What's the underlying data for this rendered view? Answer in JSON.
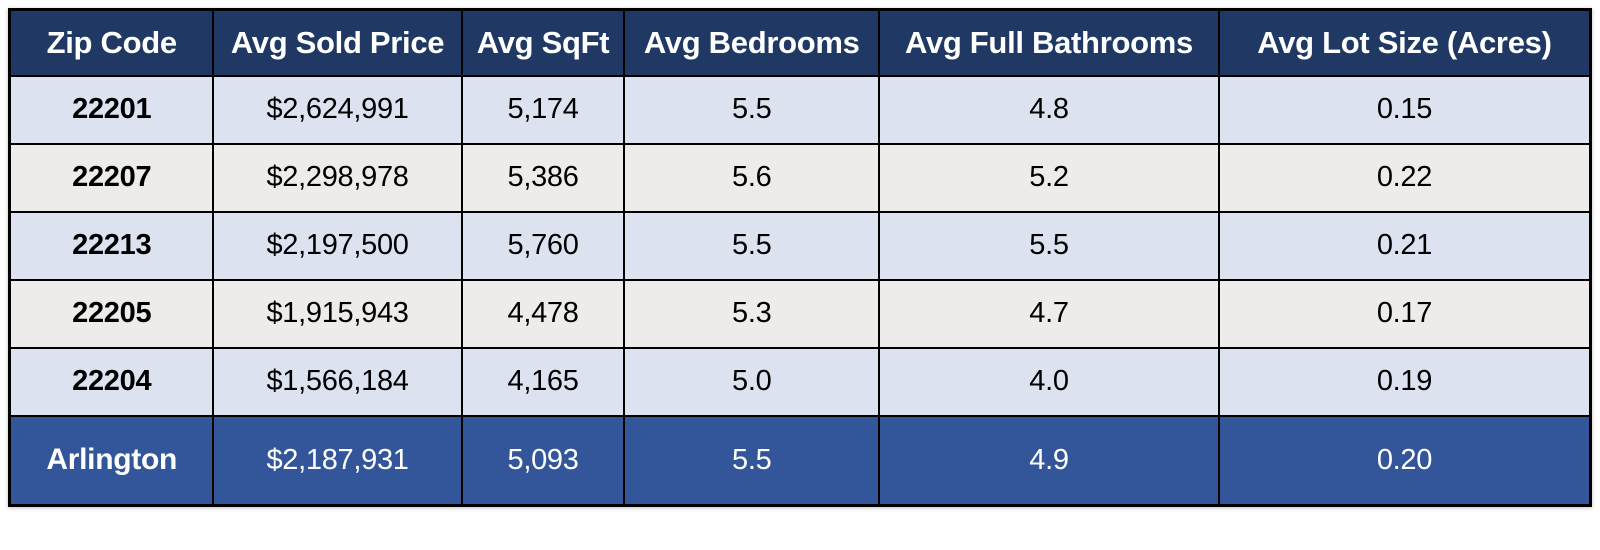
{
  "chart_data": {
    "type": "table",
    "columns": [
      "Zip Code",
      "Avg Sold Price",
      "Avg SqFt",
      "Avg Bedrooms",
      "Avg Full Bathrooms",
      "Avg Lot Size (Acres)"
    ],
    "rows": [
      [
        "22201",
        "$2,624,991",
        "5,174",
        "5.5",
        "4.8",
        "0.15"
      ],
      [
        "22207",
        "$2,298,978",
        "5,386",
        "5.6",
        "5.2",
        "0.22"
      ],
      [
        "22213",
        "$2,197,500",
        "5,760",
        "5.5",
        "5.5",
        "0.21"
      ],
      [
        "22205",
        "$1,915,943",
        "4,478",
        "5.3",
        "4.7",
        "0.17"
      ],
      [
        "22204",
        "$1,566,184",
        "4,165",
        "5.0",
        "4.0",
        "0.19"
      ]
    ],
    "summary_row": [
      "Arlington",
      "$2,187,931",
      "5,093",
      "5.5",
      "4.9",
      "0.20"
    ],
    "numeric_rows": {
      "22201": {
        "avg_sold_price": 2624991,
        "avg_sqft": 5174,
        "avg_bedrooms": 5.5,
        "avg_full_bathrooms": 4.8,
        "avg_lot_size_acres": 0.15
      },
      "22207": {
        "avg_sold_price": 2298978,
        "avg_sqft": 5386,
        "avg_bedrooms": 5.6,
        "avg_full_bathrooms": 5.2,
        "avg_lot_size_acres": 0.22
      },
      "22213": {
        "avg_sold_price": 2197500,
        "avg_sqft": 5760,
        "avg_bedrooms": 5.5,
        "avg_full_bathrooms": 5.5,
        "avg_lot_size_acres": 0.21
      },
      "22205": {
        "avg_sold_price": 1915943,
        "avg_sqft": 4478,
        "avg_bedrooms": 5.3,
        "avg_full_bathrooms": 4.7,
        "avg_lot_size_acres": 0.17
      },
      "22204": {
        "avg_sold_price": 1566184,
        "avg_sqft": 4165,
        "avg_bedrooms": 5.0,
        "avg_full_bathrooms": 4.0,
        "avg_lot_size_acres": 0.19
      },
      "Arlington": {
        "avg_sold_price": 2187931,
        "avg_sqft": 5093,
        "avg_bedrooms": 5.5,
        "avg_full_bathrooms": 4.9,
        "avg_lot_size_acres": 0.2
      }
    }
  },
  "colors": {
    "header_bg": "#1F3864",
    "header_text": "#FFFFFF",
    "row_blue_bg": "#DDE2F1",
    "row_gray_bg": "#EDECEA",
    "summary_bg": "#33569B",
    "summary_text": "#FFFFFF",
    "border": "#000000"
  }
}
